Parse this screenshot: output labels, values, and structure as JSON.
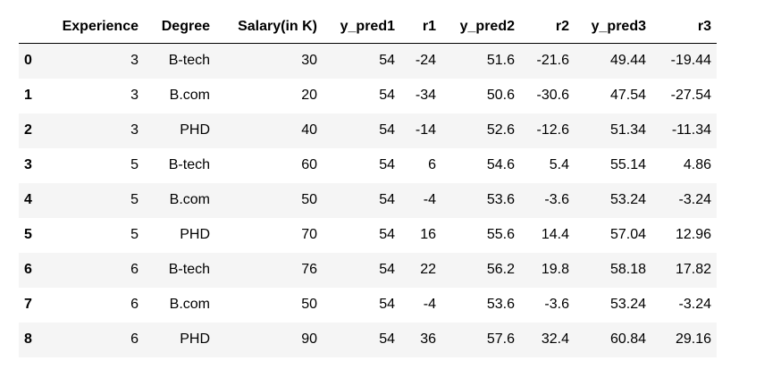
{
  "dataframe": {
    "index_header": "",
    "columns": [
      "Experience",
      "Degree",
      "Salary(in K)",
      "y_pred1",
      "r1",
      "y_pred2",
      "r2",
      "y_pred3",
      "r3"
    ],
    "rows": [
      {
        "index": "0",
        "cells": [
          "3",
          "B-tech",
          "30",
          "54",
          "-24",
          "51.6",
          "-21.6",
          "49.44",
          "-19.44"
        ]
      },
      {
        "index": "1",
        "cells": [
          "3",
          "B.com",
          "20",
          "54",
          "-34",
          "50.6",
          "-30.6",
          "47.54",
          "-27.54"
        ]
      },
      {
        "index": "2",
        "cells": [
          "3",
          "PHD",
          "40",
          "54",
          "-14",
          "52.6",
          "-12.6",
          "51.34",
          "-11.34"
        ]
      },
      {
        "index": "3",
        "cells": [
          "5",
          "B-tech",
          "60",
          "54",
          "6",
          "54.6",
          "5.4",
          "55.14",
          "4.86"
        ]
      },
      {
        "index": "4",
        "cells": [
          "5",
          "B.com",
          "50",
          "54",
          "-4",
          "53.6",
          "-3.6",
          "53.24",
          "-3.24"
        ]
      },
      {
        "index": "5",
        "cells": [
          "5",
          "PHD",
          "70",
          "54",
          "16",
          "55.6",
          "14.4",
          "57.04",
          "12.96"
        ]
      },
      {
        "index": "6",
        "cells": [
          "6",
          "B-tech",
          "76",
          "54",
          "22",
          "56.2",
          "19.8",
          "58.18",
          "17.82"
        ]
      },
      {
        "index": "7",
        "cells": [
          "6",
          "B.com",
          "50",
          "54",
          "-4",
          "53.6",
          "-3.6",
          "53.24",
          "-3.24"
        ]
      },
      {
        "index": "8",
        "cells": [
          "6",
          "PHD",
          "90",
          "54",
          "36",
          "57.6",
          "32.4",
          "60.84",
          "29.16"
        ]
      }
    ]
  },
  "colors": {
    "stripe": "#f5f5f5",
    "header_rule": "#000000",
    "text": "#000000"
  }
}
